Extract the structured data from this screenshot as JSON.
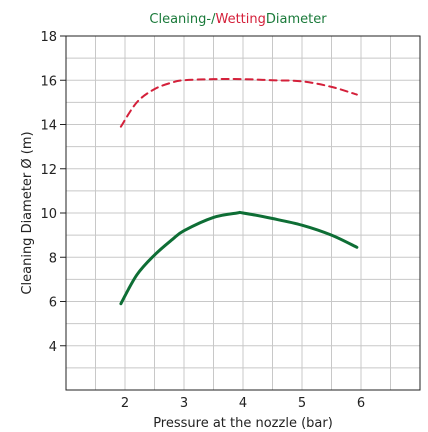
{
  "chart_data": {
    "type": "line",
    "title_parts": [
      {
        "text": "Cleaning-/",
        "color": "#1a7a3a"
      },
      {
        "text": "Wetting",
        "color": "#d4203a"
      },
      {
        "text": "Diameter",
        "color": "#1a7a3a"
      }
    ],
    "xlabel": "Pressure at the nozzle (bar)",
    "ylabel": "Cleaning Diameter Ø (m)",
    "xlim": [
      1,
      7
    ],
    "ylim": [
      2,
      18
    ],
    "x_ticks": [
      2,
      3,
      4,
      5,
      6
    ],
    "y_ticks": [
      4,
      6,
      8,
      10,
      12,
      14,
      16,
      18
    ],
    "grid": true,
    "series": [
      {
        "color": "#d4203a",
        "dash": true,
        "points": [
          [
            1.93,
            13.9
          ],
          [
            2.2,
            15.0
          ],
          [
            2.5,
            15.6
          ],
          [
            2.8,
            15.9
          ],
          [
            3.0,
            16.0
          ],
          [
            3.5,
            16.05
          ],
          [
            4.0,
            16.05
          ],
          [
            4.5,
            16.0
          ],
          [
            5.0,
            15.95
          ],
          [
            5.5,
            15.7
          ],
          [
            5.93,
            15.35
          ]
        ]
      },
      {
        "color": "#0e6e35",
        "dash": false,
        "points": [
          [
            1.93,
            5.9
          ],
          [
            2.2,
            7.2
          ],
          [
            2.5,
            8.1
          ],
          [
            2.8,
            8.8
          ],
          [
            3.0,
            9.2
          ],
          [
            3.5,
            9.8
          ],
          [
            3.9,
            10.0
          ],
          [
            4.0,
            10.0
          ],
          [
            4.5,
            9.75
          ],
          [
            5.0,
            9.45
          ],
          [
            5.5,
            9.0
          ],
          [
            5.93,
            8.45
          ]
        ]
      }
    ]
  }
}
